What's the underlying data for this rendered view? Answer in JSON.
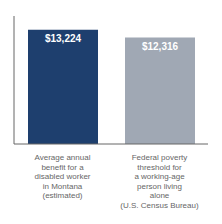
{
  "chart_data": {
    "type": "bar",
    "categories": [
      "Average annual\nbenefit for a\ndisabled worker\nin Montana\n(estimated)",
      "Federal poverty\nthreshold for\na working-age\nperson living\nalone\n(U.S. Census Bureau)"
    ],
    "values": [
      13224,
      12316
    ],
    "value_labels": [
      "$13,224",
      "$12,316"
    ],
    "colors": [
      "#1e3f6e",
      "#a0a8b4"
    ],
    "ylim": [
      0,
      14800
    ],
    "data_labels": true,
    "tick_labels": "x"
  }
}
